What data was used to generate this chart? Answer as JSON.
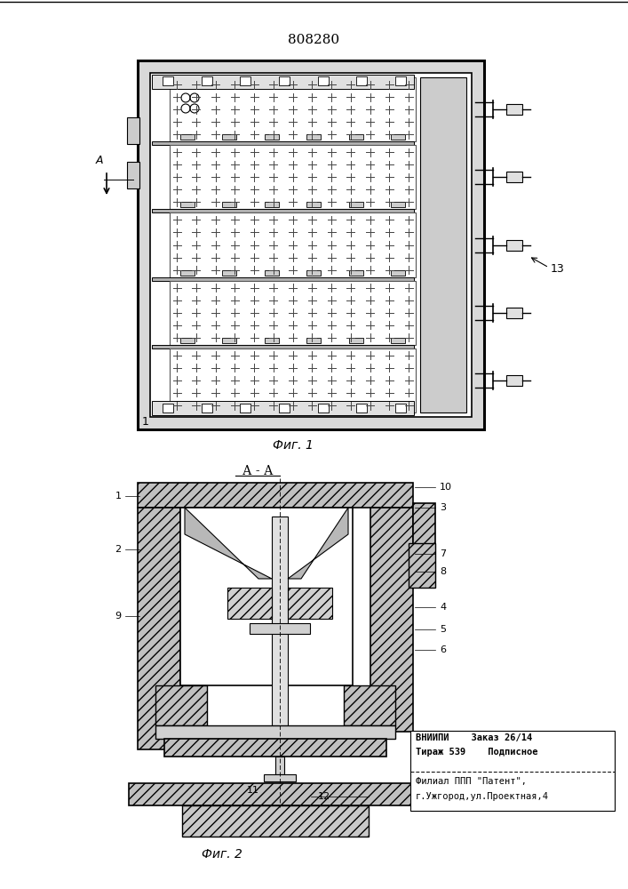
{
  "title": "808280",
  "fig1_label": "Фиг. 1",
  "fig2_label": "Фиг. 2",
  "section_label": "А - А",
  "stamp_line1": "ВНИИПИ    Заказ 26/14",
  "stamp_line2": "Тираж 539    Подписное",
  "stamp_line3": "Филиал ППП \"Патент\",",
  "stamp_line4": "г.Ужгород,ул.Проектная,4"
}
